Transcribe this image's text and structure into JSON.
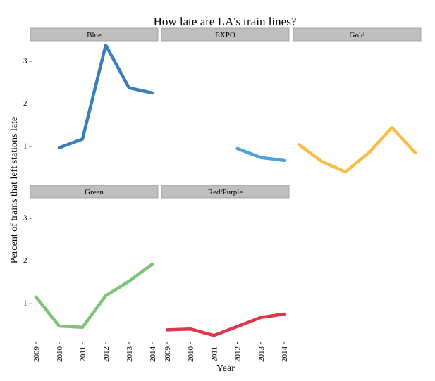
{
  "chart_data": {
    "type": "line",
    "title": "How late are LA's train lines?",
    "xlabel": "Year",
    "ylabel": "Percent of trains that left stations late",
    "x": [
      2009,
      2010,
      2011,
      2012,
      2013,
      2014
    ],
    "x_tick_labels": [
      "2009",
      "2010",
      "2011",
      "2012",
      "2013",
      "2014"
    ],
    "y_ticks": [
      1,
      2,
      3
    ],
    "y_tick_labels": [
      "1 -",
      "2 -",
      "3 -"
    ],
    "xlim": [
      2009,
      2014
    ],
    "ylim": [
      0.12,
      3.45
    ],
    "grid": false,
    "legend": "none",
    "facets": [
      {
        "name": "Blue",
        "color": "#3a7dbd",
        "x": [
          2010,
          2011,
          2012,
          2013,
          2014
        ],
        "y": [
          0.95,
          1.15,
          3.35,
          2.35,
          2.23
        ]
      },
      {
        "name": "EXPO",
        "color": "#4aa4dc",
        "x": [
          2012,
          2013,
          2014
        ],
        "y": [
          0.93,
          0.72,
          0.65
        ]
      },
      {
        "name": "Gold",
        "color": "#fdbc45",
        "x": [
          2009,
          2010,
          2011,
          2012,
          2013,
          2014
        ],
        "y": [
          1.02,
          0.62,
          0.38,
          0.83,
          1.42,
          0.83
        ]
      },
      {
        "name": "Green",
        "color": "#7ec476",
        "x": [
          2009,
          2010,
          2011,
          2012,
          2013,
          2014
        ],
        "y": [
          1.13,
          0.45,
          0.42,
          1.16,
          1.5,
          1.9
        ]
      },
      {
        "name": "Red/Purple",
        "color": "#e0364b",
        "x": [
          2009,
          2010,
          2011,
          2012,
          2013,
          2014
        ],
        "y": [
          0.36,
          0.38,
          0.23,
          0.44,
          0.65,
          0.73
        ]
      }
    ]
  }
}
